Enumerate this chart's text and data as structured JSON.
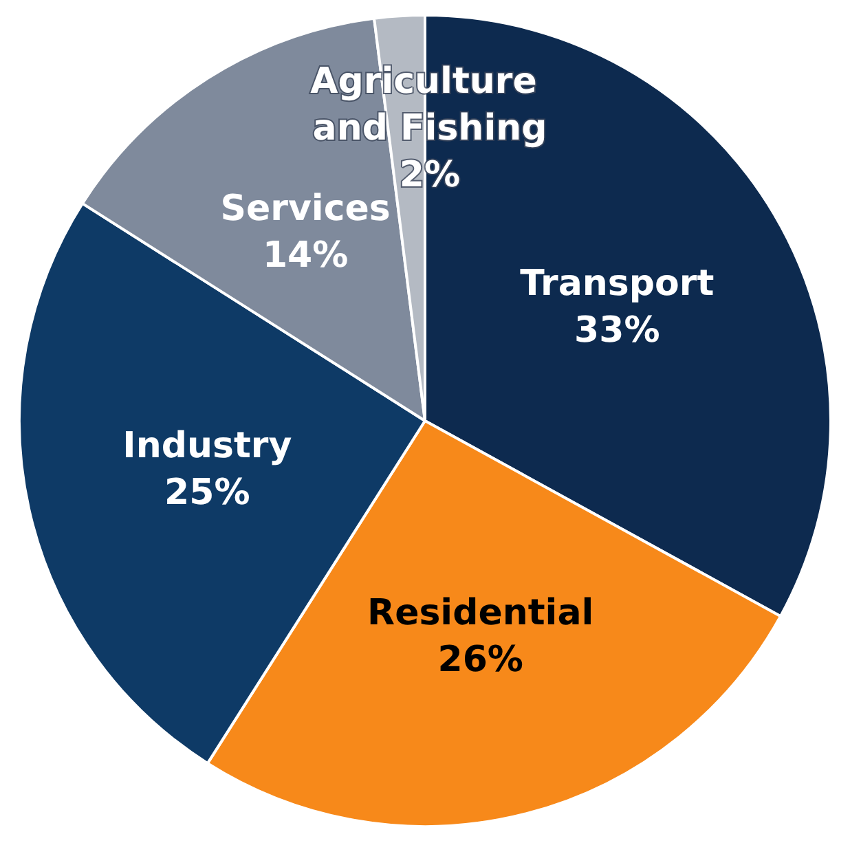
{
  "chart_data": {
    "type": "pie",
    "categories": [
      "Transport",
      "Residential",
      "Industry",
      "Services",
      "Agriculture and Fishing"
    ],
    "values": [
      33,
      26,
      25,
      14,
      2
    ],
    "value_labels": [
      "33%",
      "26%",
      "25%",
      "14%",
      "2%"
    ],
    "colors": [
      "#0d2a4f",
      "#f7891a",
      "#0e3a66",
      "#7f8a9c",
      "#b4bac3"
    ],
    "legend": false
  }
}
